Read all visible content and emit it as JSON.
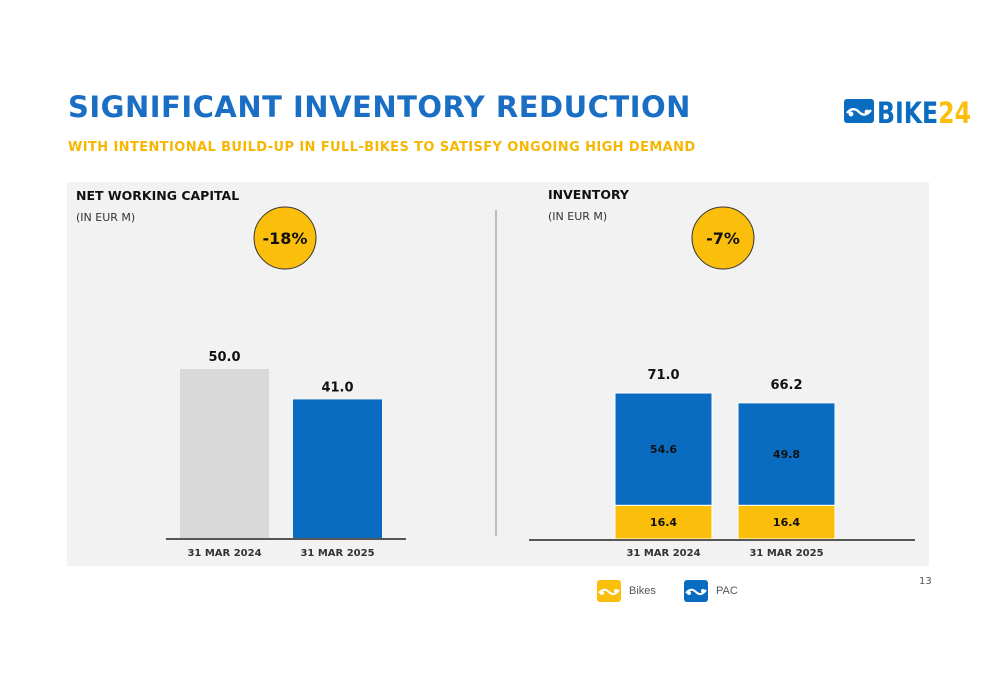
{
  "header": {
    "title": "SIGNIFICANT INVENTORY REDUCTION",
    "subtitle": "WITH INTENTIONAL BUILD-UP IN FULL-BIKES TO SATISFY ONGOING HIGH DEMAND",
    "logo_text": "BIKE24",
    "logo_prefix": "BIKE",
    "logo_suffix": "24"
  },
  "page_number": "13",
  "colors": {
    "blue": "#0a6cc1",
    "yellow": "#fbbe0b",
    "gray_bar": "#d9d9d9",
    "title_blue": "#1a6fc4",
    "subtitle_yellow": "#f5b700"
  },
  "chart_data": [
    {
      "type": "bar",
      "title": "NET WORKING CAPITAL",
      "subtitle": "(IN EUR M)",
      "categories": [
        "31 MAR 2024",
        "31 MAR 2025"
      ],
      "values": [
        50.0,
        41.0
      ],
      "value_labels": [
        "50.0",
        "41.0"
      ],
      "bar_colors": [
        "#d9d9d9",
        "#0a6cc1"
      ],
      "change_badge": "-18%",
      "ylim": [
        0,
        55
      ]
    },
    {
      "type": "bar",
      "stacked": true,
      "title": "INVENTORY",
      "subtitle": "(IN EUR M)",
      "categories": [
        "31 MAR 2024",
        "31 MAR 2025"
      ],
      "series": [
        {
          "name": "Bikes",
          "values": [
            16.4,
            16.4
          ],
          "labels": [
            "16.4",
            "16.4"
          ],
          "color": "#fbbe0b"
        },
        {
          "name": "PAC",
          "values": [
            54.6,
            49.8
          ],
          "labels": [
            "54.6",
            "49.8"
          ],
          "color": "#0a6cc1"
        }
      ],
      "totals": [
        71.0,
        66.2
      ],
      "total_labels": [
        "71.0",
        "66.2"
      ],
      "change_badge": "-7%",
      "ylim": [
        0,
        78
      ]
    }
  ],
  "legend": [
    {
      "name": "Bikes",
      "color": "#fbbe0b",
      "icon": "bikes-chain-icon"
    },
    {
      "name": "PAC",
      "color": "#0a6cc1",
      "icon": "pac-chain-icon"
    }
  ]
}
